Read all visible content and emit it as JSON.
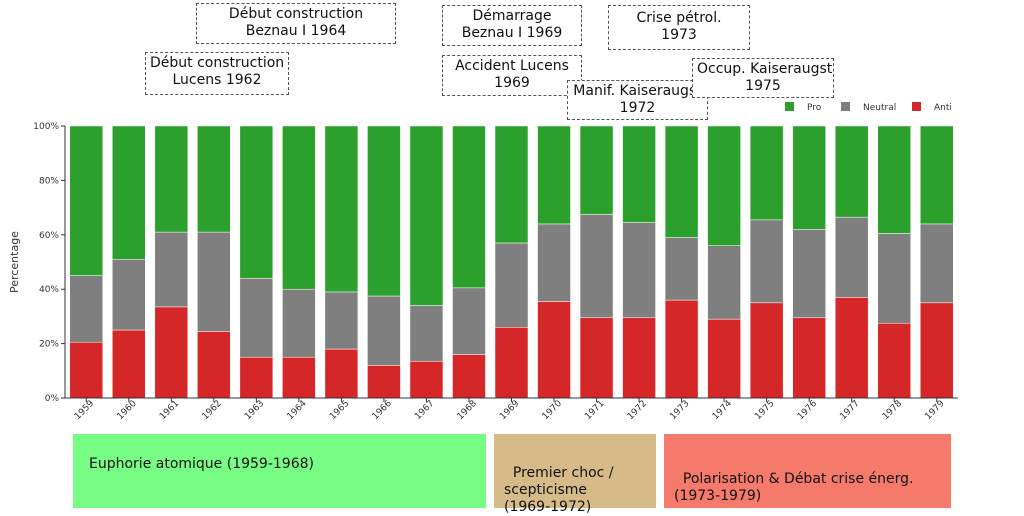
{
  "chart_data": {
    "type": "bar",
    "stacked": true,
    "normalized": true,
    "categories": [
      "1959",
      "1960",
      "1961",
      "1962",
      "1963",
      "1964",
      "1965",
      "1966",
      "1967",
      "1968",
      "1969",
      "1970",
      "1971",
      "1972",
      "1973",
      "1974",
      "1975",
      "1976",
      "1977",
      "1978",
      "1979"
    ],
    "series": [
      {
        "name": "Anti",
        "color": "#d62728",
        "values": [
          20.5,
          25,
          33.5,
          24.5,
          15,
          15,
          18,
          12,
          13.5,
          16,
          26,
          35.5,
          29.5,
          29.5,
          36,
          29,
          35,
          29.5,
          37,
          27.5,
          35
        ]
      },
      {
        "name": "Neutral",
        "color": "#7f7f7f",
        "values": [
          24.5,
          26,
          27.5,
          36.5,
          29,
          25,
          21,
          25.5,
          20.5,
          24.5,
          31,
          28.5,
          38,
          35,
          23,
          27,
          30.5,
          32.5,
          29.5,
          33,
          29
        ]
      },
      {
        "name": "Pro",
        "color": "#2ca02c",
        "values": [
          55,
          49,
          39,
          39,
          56,
          60,
          61,
          62.5,
          66,
          59.5,
          43,
          36,
          32.5,
          35.5,
          41,
          44,
          34.5,
          38,
          33.5,
          39.5,
          36
        ]
      }
    ],
    "legend_order": [
      "Pro",
      "Neutral",
      "Anti"
    ],
    "legend_position": "top-right",
    "ylabel": "Percentage",
    "xlabel": "",
    "ylim": [
      0,
      100
    ],
    "yticks": [
      "0%",
      "20%",
      "40%",
      "60%",
      "80%",
      "100%"
    ],
    "grid": false
  },
  "annotations": [
    {
      "id": "beznau-construction",
      "text": "Début construction\nBeznau I 1964"
    },
    {
      "id": "lucens-construction",
      "text": "Début construction\nLucens 1962"
    },
    {
      "id": "beznau-start",
      "text": "Démarrage\nBeznau I 1969"
    },
    {
      "id": "lucens-accident",
      "text": "Accident Lucens\n1969"
    },
    {
      "id": "oil-crisis",
      "text": "Crise pétrol.\n1973"
    },
    {
      "id": "kaiseraugst-demo",
      "text": "Manif. Kaiseraugst\n1972"
    },
    {
      "id": "kaiseraugst-occupation",
      "text": "Occup. Kaiseraugst\n1975"
    }
  ],
  "phases": [
    {
      "id": "euphoria",
      "text": "Euphorie atomique (1959-1968)",
      "color": "#77fc84"
    },
    {
      "id": "first-shock",
      "text": "Premier choc /\nscepticisme\n(1969-1972)",
      "color": "#d6bb88"
    },
    {
      "id": "polarisation",
      "text": "Polarisation & Débat crise énerg.\n(1973-1979)",
      "color": "#f57a6b"
    }
  ]
}
